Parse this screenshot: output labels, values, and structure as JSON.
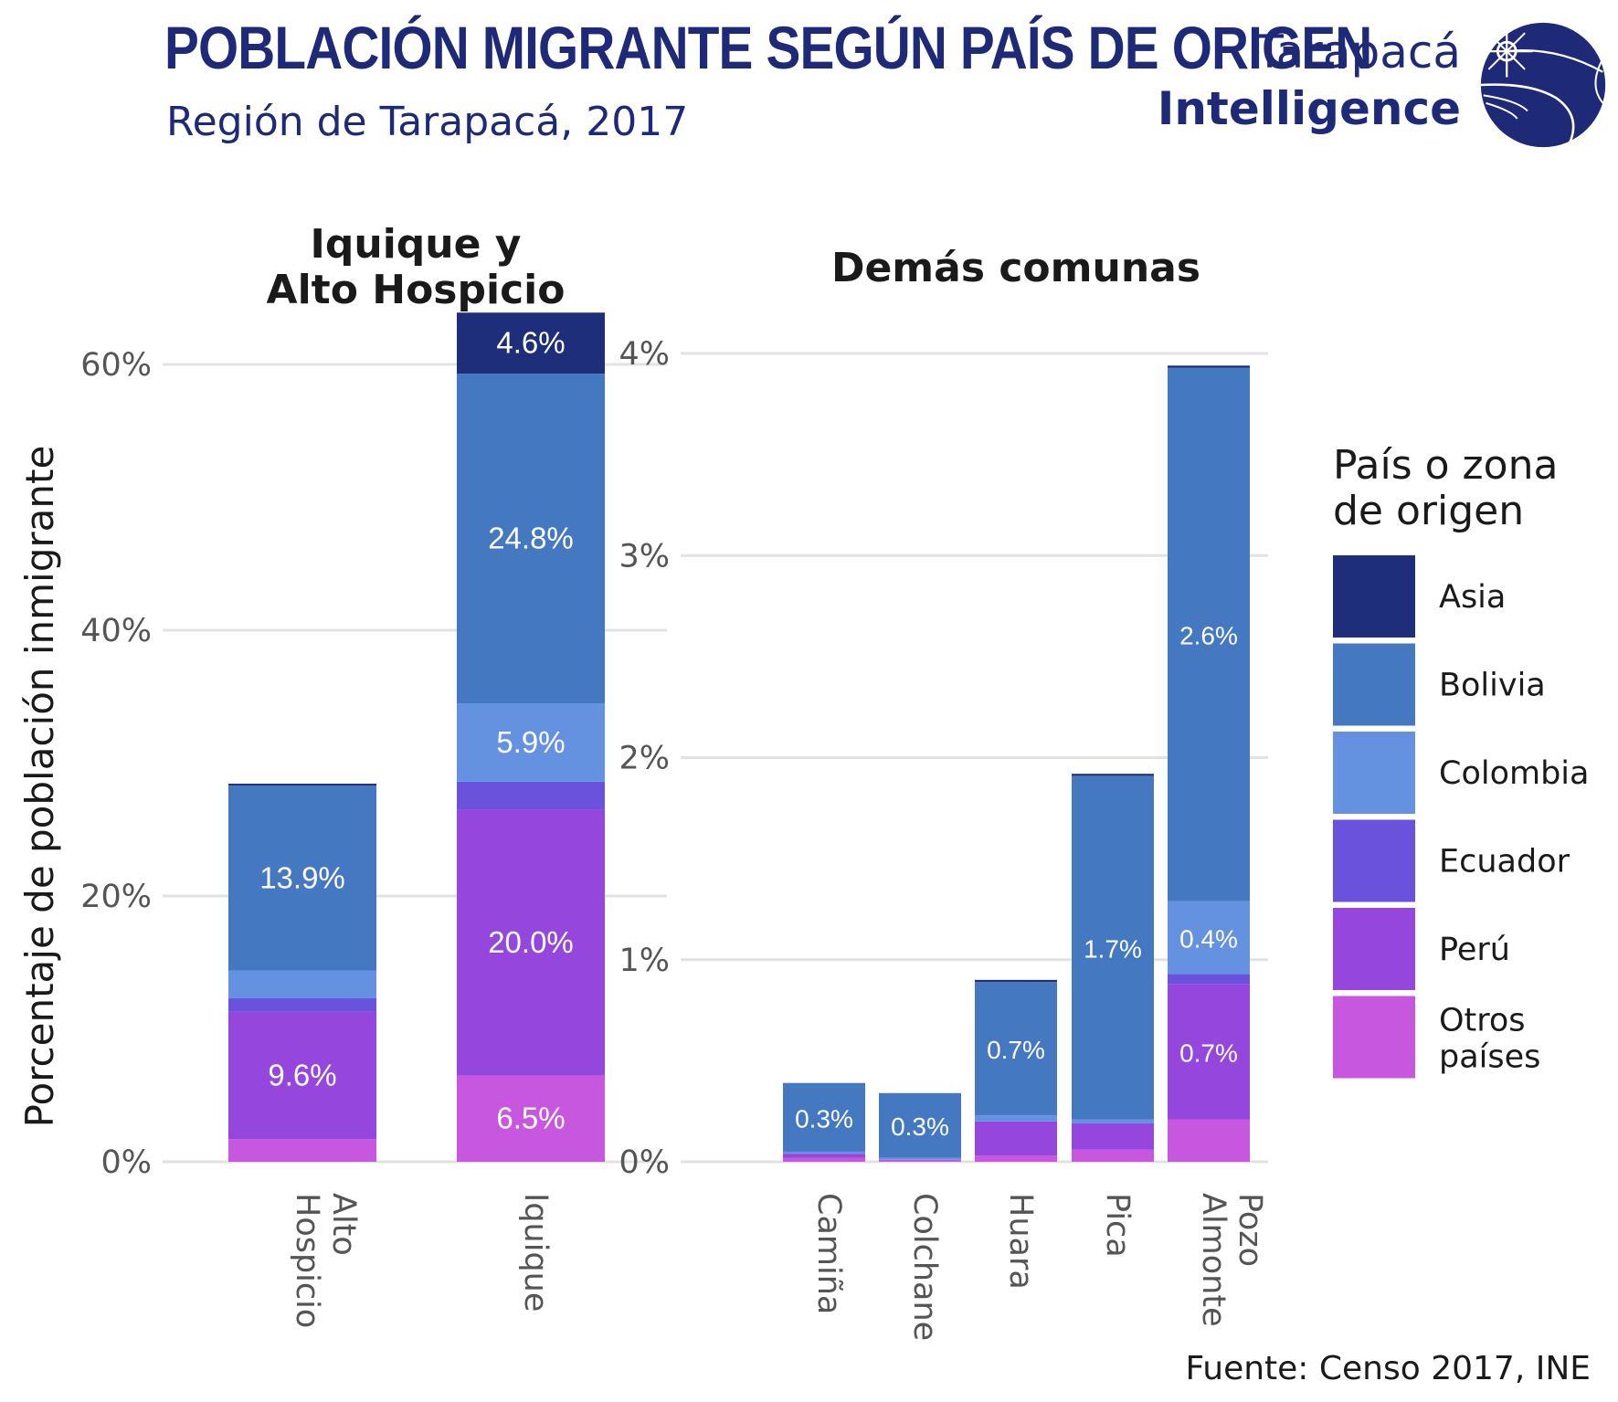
{
  "header": {
    "title": "POBLACIÓN MIGRANTE SEGÚN PAÍS DE ORIGEN",
    "subtitle": "Región de Tarapacá, 2017",
    "logo_line1": "Tarapacá",
    "logo_line2": "Intelligence"
  },
  "footer": {
    "source": "Fuente: Censo 2017, INE"
  },
  "colors": {
    "Asia": "#1f2e7a",
    "Bolivia": "#4479c2",
    "Colombia": "#6492e0",
    "Ecuador": "#6a52dd",
    "Perú": "#9446dd",
    "Otros países": "#c857e0",
    "grid": "#e2e2e2",
    "brand": "#1e2a78"
  },
  "chart_data": [
    {
      "type": "bar",
      "stacked": true,
      "title": [
        "Iquique y",
        "Alto Hospicio"
      ],
      "ylabel": "Porcentaje de población inmigrante",
      "ylim": [
        0,
        64
      ],
      "yticks": [
        0,
        20,
        40,
        60
      ],
      "ytick_labels": [
        "0%",
        "20%",
        "40%",
        "60%"
      ],
      "grid": true,
      "categories": [
        "Alto Hospicio",
        "Iquique"
      ],
      "category_labels": [
        [
          "Alto",
          "Hospicio"
        ],
        [
          "Iquique"
        ]
      ],
      "series": [
        {
          "name": "Otros países",
          "values": [
            1.7,
            6.5
          ],
          "labels": [
            "",
            "6.5%"
          ]
        },
        {
          "name": "Perú",
          "values": [
            9.6,
            20.0
          ],
          "labels": [
            "9.6%",
            "20.0%"
          ]
        },
        {
          "name": "Ecuador",
          "values": [
            1.0,
            2.1
          ],
          "labels": [
            "",
            ""
          ]
        },
        {
          "name": "Colombia",
          "values": [
            2.1,
            5.9
          ],
          "labels": [
            "",
            "5.9%"
          ]
        },
        {
          "name": "Bolivia",
          "values": [
            13.9,
            24.8
          ],
          "labels": [
            "13.9%",
            "24.8%"
          ]
        },
        {
          "name": "Asia",
          "values": [
            0.15,
            4.6
          ],
          "labels": [
            "",
            "4.6%"
          ]
        }
      ]
    },
    {
      "type": "bar",
      "stacked": true,
      "title": [
        "Demás comunas"
      ],
      "ylim": [
        0,
        4.05
      ],
      "yticks": [
        0,
        1,
        2,
        3,
        4
      ],
      "ytick_labels": [
        "0%",
        "1%",
        "2%",
        "3%",
        "4%"
      ],
      "grid": true,
      "categories": [
        "Camiña",
        "Colchane",
        "Huara",
        "Pica",
        "Pozo Almonte"
      ],
      "category_labels": [
        [
          "Camiña"
        ],
        [
          "Colchane"
        ],
        [
          "Huara"
        ],
        [
          "Pica"
        ],
        [
          "Pozo",
          "Almonte"
        ]
      ],
      "series": [
        {
          "name": "Otros países",
          "values": [
            0.02,
            0.01,
            0.03,
            0.06,
            0.21
          ],
          "labels": [
            "",
            "",
            "",
            "",
            ""
          ]
        },
        {
          "name": "Perú",
          "values": [
            0.02,
            0.0,
            0.17,
            0.13,
            0.67
          ],
          "labels": [
            "",
            "",
            "",
            "",
            "0.7%"
          ]
        },
        {
          "name": "Ecuador",
          "values": [
            0.0,
            0.0,
            0.0,
            0.0,
            0.05
          ],
          "labels": [
            "",
            "",
            "",
            "",
            ""
          ]
        },
        {
          "name": "Colombia",
          "values": [
            0.01,
            0.01,
            0.03,
            0.02,
            0.36
          ],
          "labels": [
            "",
            "",
            "",
            "",
            "0.4%"
          ]
        },
        {
          "name": "Bolivia",
          "values": [
            0.34,
            0.32,
            0.66,
            1.7,
            2.64
          ],
          "labels": [
            "0.3%",
            "0.3%",
            "0.7%",
            "1.7%",
            "2.6%"
          ]
        },
        {
          "name": "Asia",
          "values": [
            0.0,
            0.0,
            0.01,
            0.01,
            0.01
          ],
          "labels": [
            "",
            "",
            "",
            "",
            ""
          ]
        }
      ]
    }
  ],
  "legend": {
    "title": [
      "País o zona",
      "de origen"
    ],
    "placement": "right",
    "items": [
      {
        "key": "Asia",
        "label": [
          "Asia"
        ]
      },
      {
        "key": "Bolivia",
        "label": [
          "Bolivia"
        ]
      },
      {
        "key": "Colombia",
        "label": [
          "Colombia"
        ]
      },
      {
        "key": "Ecuador",
        "label": [
          "Ecuador"
        ]
      },
      {
        "key": "Perú",
        "label": [
          "Perú"
        ]
      },
      {
        "key": "Otros países",
        "label": [
          "Otros",
          "países"
        ]
      }
    ]
  }
}
